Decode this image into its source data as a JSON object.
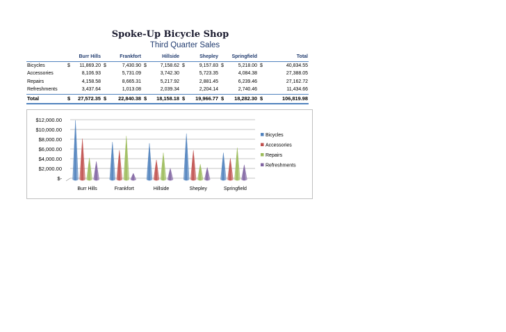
{
  "sheet": {
    "title": "Spoke-Up Bicycle Shop",
    "subtitle": "Third Quarter Sales",
    "headers": [
      "",
      "",
      "Burr Hills",
      "",
      "Frankfort",
      "",
      "Hillside",
      "",
      "Shepley",
      "",
      "Springfield",
      "",
      "Total"
    ],
    "rows": [
      {
        "label": "Bicycles",
        "cur": "$",
        "values": [
          "11,869.20",
          "7,430.90",
          "7,158.62",
          "9,157.83",
          "5,218.00",
          "40,834.55"
        ]
      },
      {
        "label": "Accessories",
        "cur": "",
        "values": [
          "8,106.93",
          "5,731.09",
          "3,742.30",
          "5,723.35",
          "4,084.38",
          "27,388.05"
        ]
      },
      {
        "label": "Repairs",
        "cur": "",
        "values": [
          "4,158.58",
          "8,665.31",
          "5,217.92",
          "2,881.45",
          "6,239.46",
          "27,162.72"
        ]
      },
      {
        "label": "Refreshments",
        "cur": "",
        "values": [
          "3,437.64",
          "1,013.08",
          "2,039.34",
          "2,204.14",
          "2,740.46",
          "11,434.66"
        ]
      }
    ],
    "total": {
      "label": "Total",
      "cur": "$",
      "values": [
        "27,572.35",
        "22,840.38",
        "18,158.18",
        "19,966.77",
        "18,282.30",
        "106,819.98"
      ]
    }
  },
  "chart_data": {
    "type": "bar",
    "categories": [
      "Burr Hills",
      "Frankfort",
      "Hillside",
      "Shepley",
      "Springfield"
    ],
    "series": [
      {
        "name": "Bicycles",
        "values": [
          11869.2,
          7430.9,
          7158.62,
          9157.83,
          5218.0
        ],
        "color": "#4f81bd"
      },
      {
        "name": "Accessories",
        "values": [
          8106.93,
          5731.09,
          3742.3,
          5723.35,
          4084.38
        ],
        "color": "#c0504d"
      },
      {
        "name": "Repairs",
        "values": [
          4158.58,
          8665.31,
          5217.92,
          2881.45,
          6239.46
        ],
        "color": "#9bbb59"
      },
      {
        "name": "Refreshments",
        "values": [
          3437.64,
          1013.08,
          2039.34,
          2204.14,
          2740.46
        ],
        "color": "#8064a2"
      }
    ],
    "ylim": [
      0,
      12000
    ],
    "yticks": [
      "$-",
      "$2,000.00",
      "$4,000.00",
      "$6,000.00",
      "$8,000.00",
      "$10,000.00",
      "$12,000.00"
    ],
    "grid": true,
    "legend": "right"
  }
}
